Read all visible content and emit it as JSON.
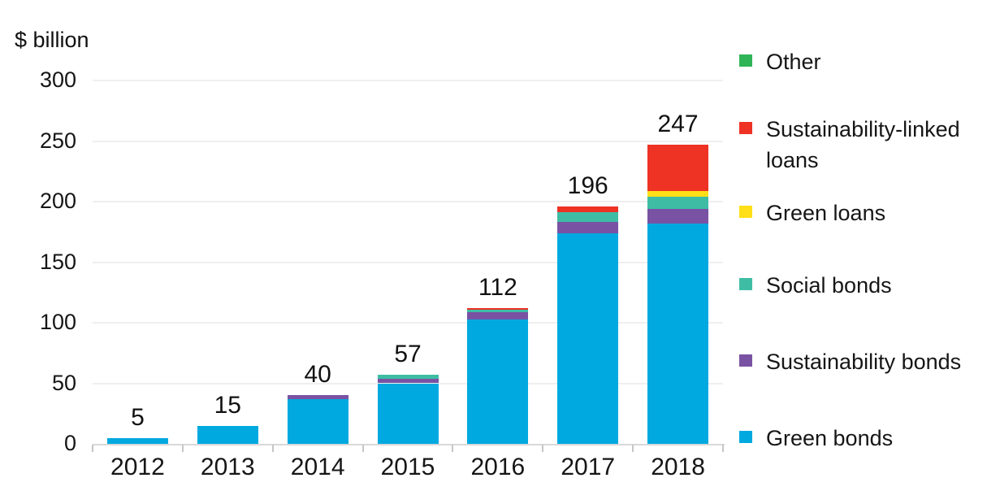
{
  "unit_label": "$ billion",
  "chart_data": {
    "type": "bar",
    "stacked": true,
    "unit": "$ billion",
    "categories": [
      "2012",
      "2013",
      "2014",
      "2015",
      "2016",
      "2017",
      "2018"
    ],
    "totals": [
      5,
      15,
      40,
      57,
      112,
      196,
      247
    ],
    "series": [
      {
        "name": "Green bonds",
        "color": "#00a9e0",
        "values": [
          5,
          15,
          37,
          50,
          103,
          174,
          182
        ]
      },
      {
        "name": "Sustainability bonds",
        "color": "#7a52a3",
        "values": [
          0,
          0,
          3,
          3.5,
          6,
          9,
          12
        ]
      },
      {
        "name": "Social bonds",
        "color": "#3ebda4",
        "values": [
          0,
          0,
          0,
          3.5,
          1.5,
          8,
          10
        ]
      },
      {
        "name": "Green loans",
        "color": "#ffdf17",
        "values": [
          0,
          0,
          0,
          0,
          0,
          0,
          5
        ]
      },
      {
        "name": "Sustainability-linked loans",
        "color": "#ee3224",
        "values": [
          0,
          0,
          0,
          0,
          1.5,
          5,
          38
        ]
      },
      {
        "name": "Other",
        "color": "#2fb457",
        "values": [
          0,
          0,
          0,
          0,
          0,
          0,
          0
        ]
      }
    ],
    "y_axis": {
      "ticks": [
        0,
        50,
        100,
        150,
        200,
        250,
        300
      ],
      "max": 300
    },
    "legend_order": [
      "Other",
      "Sustainability-linked loans",
      "Green loans",
      "Social bonds",
      "Sustainability bonds",
      "Green bonds"
    ],
    "grid": "horizontal",
    "legend_position": "right"
  }
}
